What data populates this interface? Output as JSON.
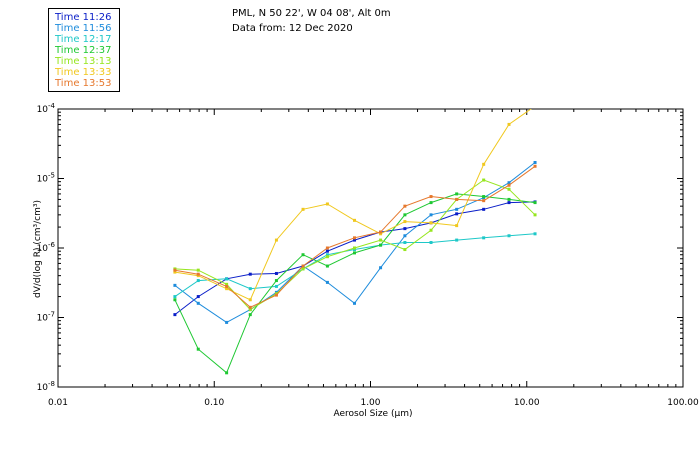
{
  "header": {
    "line1": "PML, N 50 22', W 04 08', Alt 0m",
    "line2": "Data from: 12 Dec 2020"
  },
  "chart_data": {
    "type": "line",
    "xlabel": "Aerosol Size (μm)",
    "ylabel": "dV/d(log R) (cm³/cm³)",
    "x_scale": "log",
    "y_scale": "log",
    "xlim": [
      0.01,
      100
    ],
    "ylim": [
      1e-08,
      0.0001
    ],
    "x_tick_labels": [
      "0.01",
      "0.10",
      "1.00",
      "10.00",
      "100.00"
    ],
    "x_ticks": [
      0.01,
      0.1,
      1,
      10,
      100
    ],
    "y_ticks": [
      1e-08,
      1e-07,
      1e-06,
      1e-05,
      0.0001
    ],
    "y_tick_labels": [
      {
        "base": "10",
        "exp": "-8"
      },
      {
        "base": "10",
        "exp": "-7"
      },
      {
        "base": "10",
        "exp": "-6"
      },
      {
        "base": "10",
        "exp": "-5"
      },
      {
        "base": "10",
        "exp": "-4"
      }
    ],
    "grid": false,
    "legend_position": "top-left",
    "x": [
      0.056,
      0.079,
      0.12,
      0.17,
      0.25,
      0.37,
      0.53,
      0.79,
      1.16,
      1.66,
      2.44,
      3.56,
      5.3,
      7.7,
      11.3
    ],
    "series": [
      {
        "name": "Time 11:26",
        "color": "#0a1ec8",
        "values": [
          1.1e-07,
          2e-07,
          3.6e-07,
          4.2e-07,
          4.3e-07,
          5.5e-07,
          9e-07,
          1.3e-06,
          1.7e-06,
          1.9e-06,
          2.3e-06,
          3.1e-06,
          3.6e-06,
          4.5e-06,
          4.6e-06
        ]
      },
      {
        "name": "Time 11:56",
        "color": "#1e8cdc",
        "values": [
          2.9e-07,
          1.6e-07,
          8.5e-08,
          1.3e-07,
          2.3e-07,
          5.5e-07,
          3.2e-07,
          1.6e-07,
          5.2e-07,
          1.5e-06,
          3e-06,
          3.6e-06,
          5.3e-06,
          8.7e-06,
          1.7e-05
        ]
      },
      {
        "name": "Time 12:17",
        "color": "#1ec8c8",
        "values": [
          2e-07,
          3.4e-07,
          3.6e-07,
          2.6e-07,
          2.8e-07,
          5e-07,
          8e-07,
          9.5e-07,
          1.1e-06,
          1.2e-06,
          1.2e-06,
          1.3e-06,
          1.4e-06,
          1.5e-06,
          1.6e-06
        ]
      },
      {
        "name": "Time 12:37",
        "color": "#1ec832",
        "values": [
          1.8e-07,
          3.5e-08,
          1.6e-08,
          1.1e-07,
          3.4e-07,
          8e-07,
          5.5e-07,
          8.5e-07,
          1.1e-06,
          3e-06,
          4.5e-06,
          6e-06,
          5.5e-06,
          5e-06,
          4.5e-06
        ]
      },
      {
        "name": "Time 13:13",
        "color": "#96e61e",
        "values": [
          5e-07,
          4.8e-07,
          3e-07,
          1.3e-07,
          2.2e-07,
          5e-07,
          7.5e-07,
          1e-06,
          1.3e-06,
          9.5e-07,
          1.8e-06,
          5e-06,
          9.5e-06,
          7e-06,
          3e-06
        ]
      },
      {
        "name": "Time 13:33",
        "color": "#f0c81e",
        "values": [
          4.5e-07,
          4e-07,
          2.6e-07,
          1.8e-07,
          1.3e-06,
          3.6e-06,
          4.3e-06,
          2.5e-06,
          1.6e-06,
          2.4e-06,
          2.3e-06,
          2.1e-06,
          1.6e-05,
          6e-05,
          0.00011
        ]
      },
      {
        "name": "Time 13:53",
        "color": "#e6782d",
        "values": [
          4.8e-07,
          4.2e-07,
          2.8e-07,
          1.4e-07,
          2.1e-07,
          5.5e-07,
          1e-06,
          1.4e-06,
          1.7e-06,
          4e-06,
          5.5e-06,
          5e-06,
          4.8e-06,
          8e-06,
          1.5e-05
        ]
      }
    ]
  }
}
